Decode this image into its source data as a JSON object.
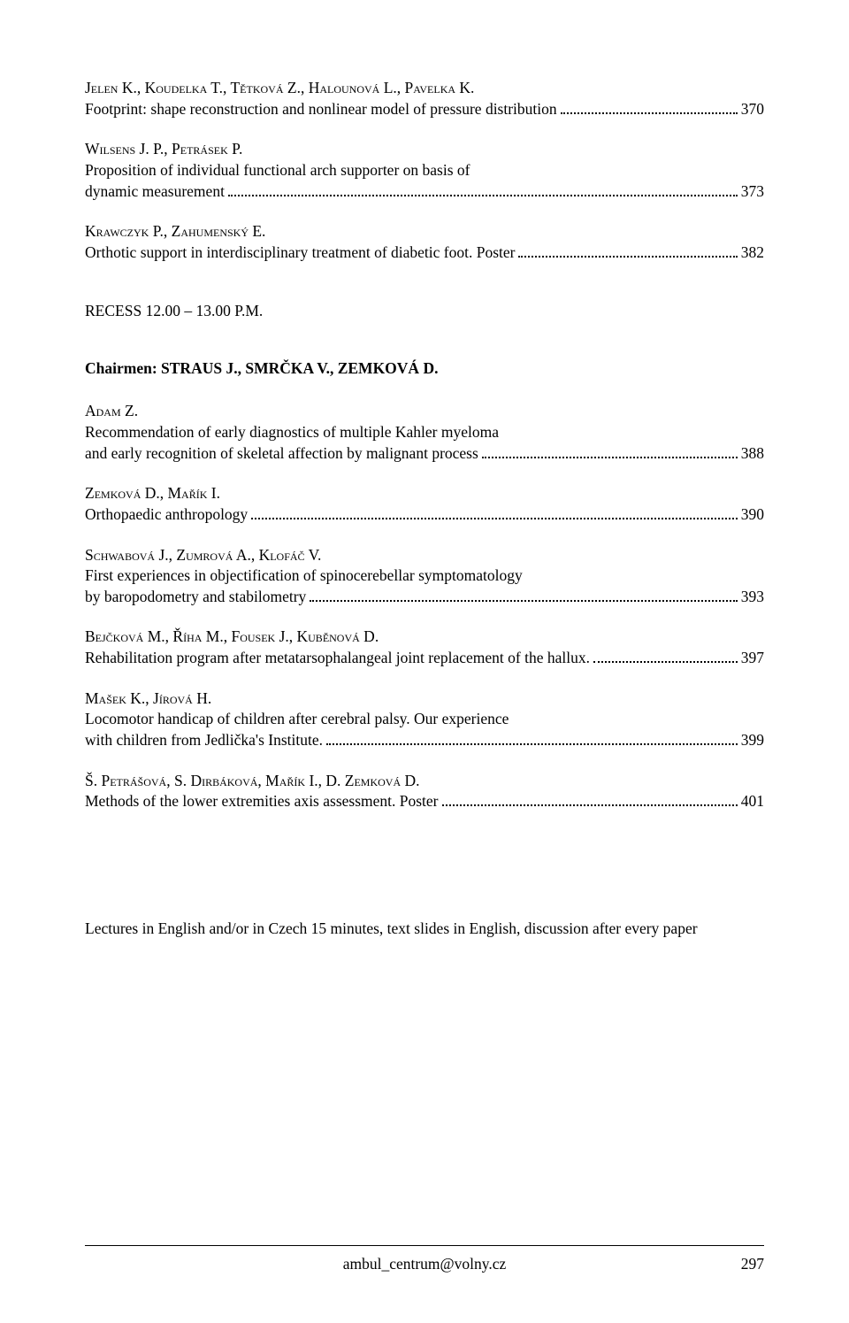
{
  "entries_top": [
    {
      "authors": "Jelen K., Koudelka T., Tětková Z., Halounová L., Pavelka K.",
      "title_lines": [
        "Footprint: shape reconstruction and nonlinear model of pressure distribution"
      ],
      "page": "370"
    },
    {
      "authors": "Wilsens J. P., Petrásek P.",
      "title_lines": [
        "Proposition of individual functional arch supporter on basis of",
        "dynamic measurement"
      ],
      "page": "373"
    },
    {
      "authors": "Krawczyk P., Zahumenský E.",
      "title_lines": [
        "Orthotic support in interdisciplinary treatment of diabetic foot. Poster"
      ],
      "page": "382"
    }
  ],
  "session": "RECESS 12.00 – 13.00 P.M.",
  "chairmen_label": "Chairmen:",
  "chairmen_names": "STRAUS J., SMRČKA V., ZEMKOVÁ D.",
  "entries_bottom": [
    {
      "authors": "Adam Z.",
      "title_lines": [
        "Recommendation of early diagnostics of multiple Kahler myeloma",
        "and early recognition of skeletal affection by malignant process"
      ],
      "page": "388"
    },
    {
      "authors": "Zemková D., Mařík I.",
      "title_lines": [
        "Orthopaedic anthropology"
      ],
      "page": "390"
    },
    {
      "authors": "Schwabová J., Zumrová A., Klofáč V.",
      "title_lines": [
        "First experiences in objectification of spinocerebellar symptomatology",
        "by baropodometry and stabilometry"
      ],
      "page": "393"
    },
    {
      "authors": "Bejčková M., Říha M., Fousek J., Kuběnová D.",
      "title_lines": [
        "Rehabilitation program after metatarsophalangeal joint replacement of the hallux."
      ],
      "page": "397"
    },
    {
      "authors": "Mašek K., Jírová H.",
      "title_lines": [
        "Locomotor handicap of children after cerebral palsy. Our experience",
        "with children from Jedlička's Institute."
      ],
      "page": "399"
    },
    {
      "authors": "Š. Petrášová, S. Dirbáková, Mařík I., D. Zemková D.",
      "title_lines": [
        "Methods of the lower extremities axis assessment. Poster"
      ],
      "page": "401"
    }
  ],
  "note": "Lectures in English and/or in Czech 15 minutes, text slides in English, discussion after every paper",
  "footer_email": "ambul_centrum@volny.cz",
  "footer_page": "297"
}
